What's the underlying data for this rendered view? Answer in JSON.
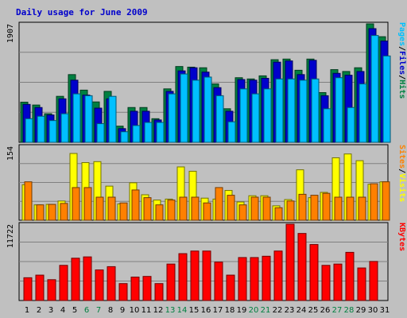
{
  "title": "Daily usage for June 2009",
  "colors": {
    "background": "#c0c0c0",
    "panel": "#c0c0c0",
    "title": "#0000cc",
    "hits": "#008040",
    "files": "#0000cc",
    "pages": "#00c0ff",
    "visits": "#ffff00",
    "sites": "#ff8000",
    "kbytes": "#ff0000",
    "weekend_label": "#008040",
    "weekday_label": "#000000"
  },
  "days": [
    "1",
    "2",
    "3",
    "4",
    "5",
    "6",
    "7",
    "8",
    "9",
    "10",
    "11",
    "12",
    "13",
    "14",
    "15",
    "16",
    "17",
    "18",
    "19",
    "20",
    "21",
    "22",
    "23",
    "24",
    "25",
    "26",
    "27",
    "28",
    "29",
    "30",
    "31"
  ],
  "weekend_days": [
    6,
    7,
    13,
    14,
    20,
    21,
    27,
    28
  ],
  "chart_data": [
    {
      "type": "bar",
      "panel": "hits-files-pages",
      "ymax_label": "1907",
      "ylim": [
        0,
        1907
      ],
      "grid": true,
      "legend": "right",
      "legend_entries": [
        "Pages",
        "/",
        "Files",
        "/",
        "Hits"
      ],
      "series": [
        {
          "name": "Hits",
          "values": [
            646,
            600,
            460,
            740,
            1090,
            840,
            650,
            820,
            260,
            560,
            560,
            380,
            860,
            1220,
            1210,
            1200,
            940,
            540,
            1040,
            1020,
            1070,
            1330,
            1340,
            1160,
            1340,
            800,
            1170,
            1140,
            1200,
            1907,
            1700
          ]
        },
        {
          "name": "Files",
          "values": [
            610,
            560,
            440,
            700,
            1000,
            760,
            550,
            700,
            220,
            500,
            500,
            360,
            820,
            1150,
            1200,
            1130,
            880,
            500,
            1010,
            1000,
            1030,
            1290,
            1310,
            1090,
            1320,
            750,
            1110,
            1080,
            1140,
            1830,
            1630
          ]
        },
        {
          "name": "Pages",
          "values": [
            380,
            420,
            350,
            460,
            780,
            750,
            300,
            740,
            170,
            270,
            320,
            320,
            780,
            1100,
            1000,
            1050,
            750,
            330,
            860,
            780,
            860,
            1020,
            1020,
            1000,
            1020,
            540,
            1040,
            560,
            940,
            1720,
            1390
          ]
        },
        {
          "name": "",
          "values": [
            0,
            0,
            0,
            0,
            0,
            0,
            0,
            0,
            0,
            0,
            0,
            0,
            0,
            0,
            0,
            0,
            0,
            0,
            0,
            0,
            0,
            0,
            0,
            0,
            0,
            0,
            0,
            0,
            0,
            0,
            0
          ]
        }
      ]
    },
    {
      "type": "bar",
      "panel": "visits-sites",
      "ymax_label": "154",
      "ylim": [
        0,
        154
      ],
      "grid": true,
      "legend": "right",
      "legend_entries": [
        "Sites",
        "/",
        "Visits"
      ],
      "series": [
        {
          "name": "Visits",
          "values": [
            74,
            32,
            33,
            40,
            139,
            120,
            122,
            71,
            34,
            78,
            53,
            42,
            44,
            111,
            102,
            46,
            44,
            62,
            38,
            51,
            51,
            30,
            43,
            105,
            47,
            58,
            130,
            138,
            124,
            75,
            80
          ]
        },
        {
          "name": "Sites",
          "values": [
            80,
            32,
            33,
            35,
            68,
            68,
            48,
            48,
            36,
            63,
            47,
            32,
            42,
            48,
            48,
            36,
            68,
            52,
            32,
            48,
            48,
            26,
            40,
            54,
            52,
            56,
            48,
            48,
            48,
            76,
            80
          ]
        }
      ]
    },
    {
      "type": "bar",
      "panel": "kbytes",
      "ymax_label": "11722",
      "ylim": [
        0,
        11722
      ],
      "grid": true,
      "legend": "right",
      "legend_entries": [
        "KBytes"
      ],
      "series": [
        {
          "name": "KBytes",
          "values": [
            3500,
            3900,
            3200,
            5400,
            6500,
            6700,
            4700,
            5200,
            2600,
            3600,
            3700,
            2600,
            5600,
            7200,
            7600,
            7600,
            5900,
            3900,
            6600,
            6600,
            6800,
            7600,
            11722,
            10300,
            8600,
            5400,
            5600,
            7400,
            5000,
            6000,
            0
          ]
        }
      ]
    }
  ]
}
